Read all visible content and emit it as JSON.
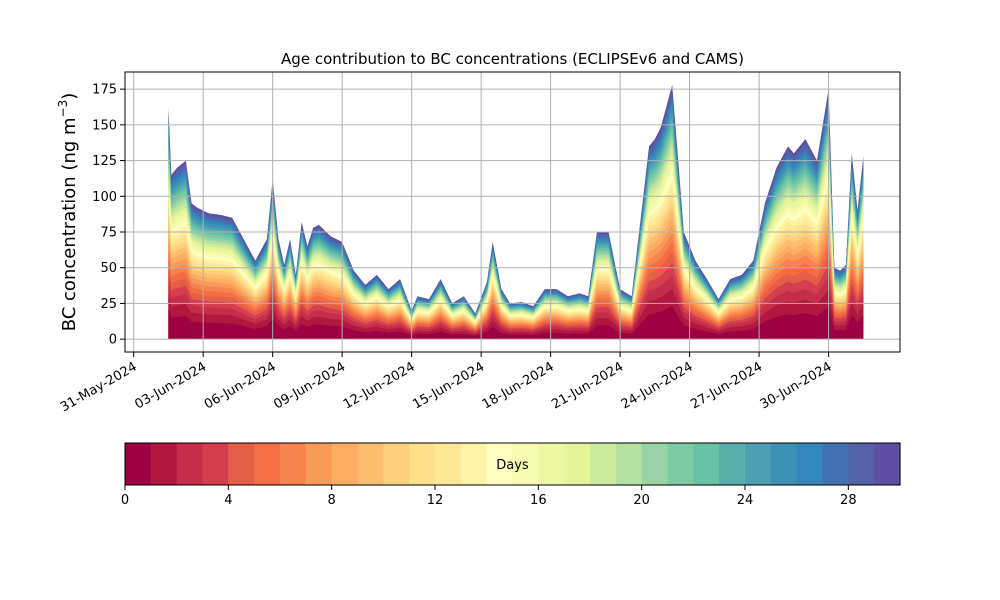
{
  "chart_data": {
    "type": "area",
    "stacked": true,
    "title": "Age contribution to BC concentrations (ECLIPSEv6 and CAMS)",
    "ylabel_main": "BC concentration (ng m",
    "ylabel_sup": "−3",
    "ylabel_close": ")",
    "xlim": [
      "2024-05-30T15:00",
      "2024-07-03T02:00"
    ],
    "ylim": [
      -9,
      187
    ],
    "grid": true,
    "x_ticks": [
      "2024-05-31",
      "2024-06-03",
      "2024-06-06",
      "2024-06-09",
      "2024-06-12",
      "2024-06-15",
      "2024-06-18",
      "2024-06-21",
      "2024-06-24",
      "2024-06-27",
      "2024-06-30"
    ],
    "x_tick_labels": [
      "31-May-2024",
      "03-Jun-2024",
      "06-Jun-2024",
      "09-Jun-2024",
      "12-Jun-2024",
      "15-Jun-2024",
      "18-Jun-2024",
      "21-Jun-2024",
      "24-Jun-2024",
      "27-Jun-2024",
      "30-Jun-2024"
    ],
    "y_ticks": [
      0,
      25,
      50,
      75,
      100,
      125,
      150,
      175
    ],
    "y_tick_labels": [
      "0",
      "25",
      "50",
      "75",
      "100",
      "125",
      "150",
      "175"
    ],
    "age_bins": 30,
    "total_concentration": {
      "dates": [
        "2024-06-01T12:00",
        "2024-06-01T15:00",
        "2024-06-01T21:00",
        "2024-06-02T06:00",
        "2024-06-02T12:00",
        "2024-06-02T18:00",
        "2024-06-03T06:00",
        "2024-06-03T18:00",
        "2024-06-04T06:00",
        "2024-06-04T18:00",
        "2024-06-05T06:00",
        "2024-06-05T18:00",
        "2024-06-06T00:00",
        "2024-06-06T06:00",
        "2024-06-06T12:00",
        "2024-06-06T18:00",
        "2024-06-07T00:00",
        "2024-06-07T06:00",
        "2024-06-07T12:00",
        "2024-06-07T18:00",
        "2024-06-08T00:00",
        "2024-06-08T12:00",
        "2024-06-09T00:00",
        "2024-06-09T12:00",
        "2024-06-10T00:00",
        "2024-06-10T12:00",
        "2024-06-11T00:00",
        "2024-06-11T12:00",
        "2024-06-12T00:00",
        "2024-06-12T06:00",
        "2024-06-12T18:00",
        "2024-06-13T06:00",
        "2024-06-13T18:00",
        "2024-06-14T06:00",
        "2024-06-14T18:00",
        "2024-06-15T06:00",
        "2024-06-15T12:00",
        "2024-06-15T21:00",
        "2024-06-16T06:00",
        "2024-06-16T18:00",
        "2024-06-17T06:00",
        "2024-06-17T18:00",
        "2024-06-18T06:00",
        "2024-06-18T18:00",
        "2024-06-19T06:00",
        "2024-06-19T15:00",
        "2024-06-20T00:00",
        "2024-06-20T12:00",
        "2024-06-21T00:00",
        "2024-06-21T12:00",
        "2024-06-22T00:00",
        "2024-06-22T06:00",
        "2024-06-22T12:00",
        "2024-06-22T18:00",
        "2024-06-23T06:00",
        "2024-06-23T18:00",
        "2024-06-24T06:00",
        "2024-06-24T18:00",
        "2024-06-25T06:00",
        "2024-06-25T18:00",
        "2024-06-26T06:00",
        "2024-06-26T18:00",
        "2024-06-27T06:00",
        "2024-06-27T18:00",
        "2024-06-28T06:00",
        "2024-06-28T12:00",
        "2024-06-29T00:00",
        "2024-06-29T12:00",
        "2024-06-30T00:00",
        "2024-06-30T06:00",
        "2024-06-30T12:00",
        "2024-06-30T18:00",
        "2024-07-01T00:00",
        "2024-07-01T06:00",
        "2024-07-01T12:00"
      ],
      "values": [
        162,
        115,
        120,
        125,
        95,
        92,
        88,
        87,
        85,
        70,
        55,
        70,
        112,
        70,
        52,
        70,
        45,
        82,
        65,
        78,
        80,
        72,
        68,
        48,
        38,
        45,
        35,
        42,
        20,
        30,
        28,
        42,
        25,
        30,
        18,
        40,
        68,
        35,
        25,
        26,
        23,
        35,
        35,
        30,
        32,
        30,
        75,
        75,
        35,
        30,
        100,
        135,
        140,
        148,
        178,
        75,
        55,
        42,
        28,
        42,
        45,
        55,
        95,
        120,
        135,
        130,
        140,
        125,
        175,
        50,
        48,
        52,
        130,
        90,
        128
      ]
    },
    "colorbar": {
      "label": "Days",
      "min": 0,
      "max": 30,
      "ticks": [
        0,
        4,
        8,
        12,
        16,
        20,
        24,
        28
      ],
      "tick_labels": [
        "0",
        "4",
        "8",
        "12",
        "16",
        "20",
        "24",
        "28"
      ],
      "colors": [
        "#9e0142",
        "#b2183f",
        "#c52d4b",
        "#d53e4f",
        "#e45f48",
        "#f46d43",
        "#f7844e",
        "#fa9a59",
        "#fdae61",
        "#fdbf6f",
        "#fecf7c",
        "#fee08b",
        "#fee997",
        "#fff3a7",
        "#ffffbf",
        "#f6fbb2",
        "#ecf7a1",
        "#e6f598",
        "#cdeb9d",
        "#b6e1a1",
        "#99d5a4",
        "#7ccba5",
        "#66c2a5",
        "#57b0aa",
        "#4aa0b1",
        "#3d90b6",
        "#3288bd",
        "#4372b3",
        "#5461a8",
        "#5e4fa2"
      ]
    }
  }
}
